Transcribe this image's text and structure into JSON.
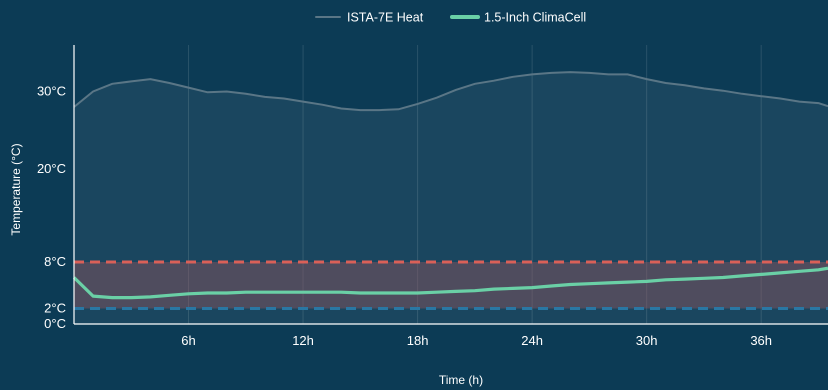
{
  "chart_data": {
    "type": "area",
    "xlabel": "Time (h)",
    "ylabel": "Temperature (°C)",
    "xlim": [
      0,
      39.5
    ],
    "ylim": [
      0,
      36
    ],
    "x_ticks": [
      6,
      12,
      18,
      24,
      30,
      36
    ],
    "x_tick_labels": [
      "6h",
      "12h",
      "18h",
      "24h",
      "30h",
      "36h"
    ],
    "y_ticks": [
      0,
      2,
      8,
      20,
      30
    ],
    "y_tick_labels": [
      "0°C",
      "2°C",
      "8°C",
      "20°C",
      "30°C"
    ],
    "grid": "vertical",
    "legend_position": "top-center",
    "reference_band": {
      "low": 2,
      "high": 8,
      "low_color": "#1c6f9f",
      "high_color": "#d8574e"
    },
    "series": [
      {
        "name": "ISTA-7E Heat",
        "color": "#5a7686",
        "x": [
          0,
          1,
          2,
          3,
          4,
          5,
          6,
          7,
          8,
          9,
          10,
          11,
          12,
          13,
          14,
          15,
          16,
          17,
          18,
          19,
          20,
          21,
          22,
          23,
          24,
          25,
          26,
          27,
          28,
          29,
          30,
          31,
          32,
          33,
          34,
          35,
          36,
          37,
          38,
          39,
          39.5
        ],
        "values": [
          28,
          30,
          31,
          31.3,
          31.6,
          31.1,
          30.5,
          29.9,
          30,
          29.7,
          29.3,
          29.1,
          28.7,
          28.3,
          27.8,
          27.6,
          27.6,
          27.7,
          28.4,
          29.2,
          30.2,
          31,
          31.4,
          31.9,
          32.2,
          32.4,
          32.5,
          32.4,
          32.2,
          32.2,
          31.6,
          31.1,
          30.8,
          30.4,
          30.1,
          29.7,
          29.4,
          29.1,
          28.7,
          28.5,
          28.1
        ]
      },
      {
        "name": "1.5-Inch ClimaCell",
        "color": "#6ad0a6",
        "x": [
          0,
          1,
          2,
          3,
          4,
          5,
          6,
          7,
          8,
          9,
          10,
          11,
          12,
          13,
          14,
          15,
          16,
          17,
          18,
          19,
          20,
          21,
          22,
          23,
          24,
          25,
          26,
          27,
          28,
          29,
          30,
          31,
          32,
          33,
          34,
          35,
          36,
          37,
          38,
          39,
          39.5
        ],
        "values": [
          6,
          3.6,
          3.4,
          3.4,
          3.5,
          3.7,
          3.9,
          4,
          4,
          4.1,
          4.1,
          4.1,
          4.1,
          4.1,
          4.1,
          4,
          4,
          4,
          4,
          4.1,
          4.2,
          4.3,
          4.5,
          4.6,
          4.7,
          4.9,
          5.1,
          5.2,
          5.3,
          5.4,
          5.5,
          5.7,
          5.8,
          5.9,
          6,
          6.2,
          6.4,
          6.6,
          6.8,
          7,
          7.2
        ]
      }
    ]
  }
}
